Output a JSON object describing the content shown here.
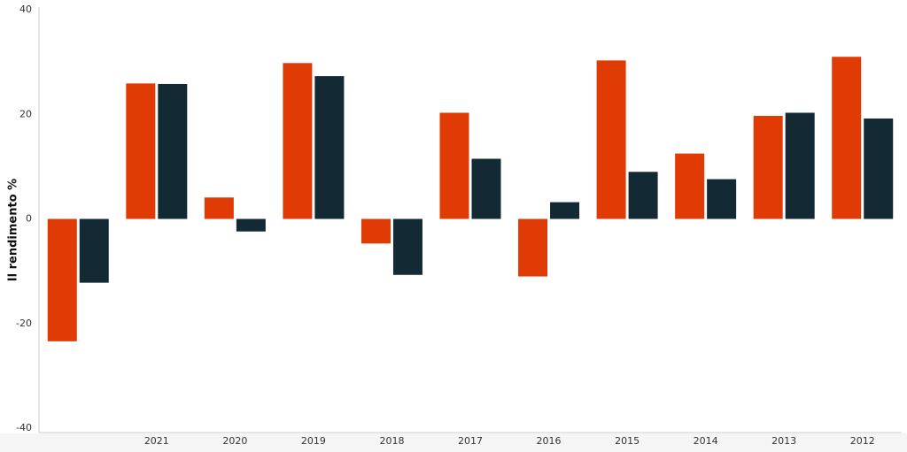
{
  "chart_data": {
    "type": "bar",
    "y_label": "Il rendimento %",
    "categories": [
      null,
      "2021",
      "2020",
      "2019",
      "2018",
      "2017",
      "2016",
      "2015",
      "2014",
      "2013",
      "2012"
    ],
    "series": [
      {
        "color": "#e03a05",
        "values": [
          -23.4,
          25.9,
          4.1,
          29.8,
          -4.7,
          20.3,
          -11.0,
          30.3,
          12.5,
          19.7,
          31.0
        ]
      },
      {
        "color": "#132a35",
        "values": [
          -12.2,
          25.8,
          -2.4,
          27.3,
          -10.7,
          11.5,
          3.2,
          9.0,
          7.6,
          20.3,
          19.2
        ]
      }
    ],
    "ylim": [
      -40,
      40
    ],
    "yticks": [
      -40,
      -20,
      0,
      20,
      40
    ],
    "grid": false
  }
}
